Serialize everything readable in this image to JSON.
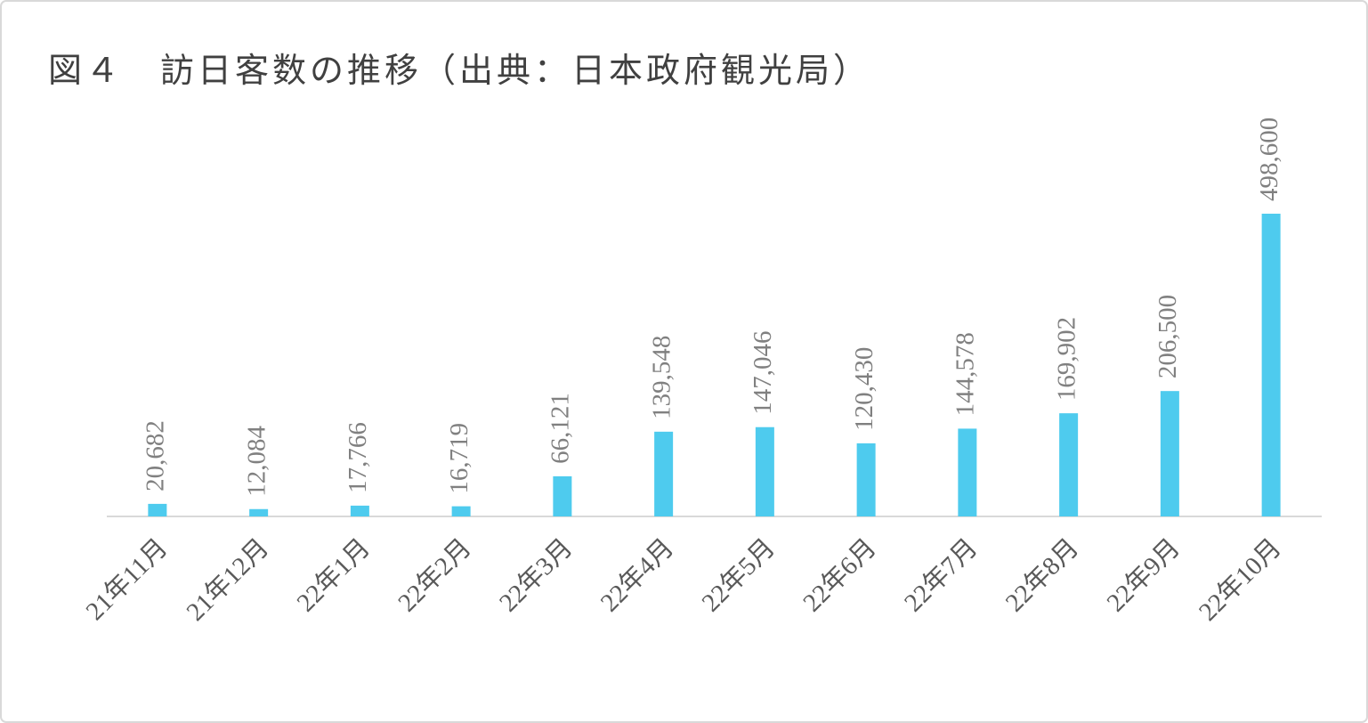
{
  "chart_data": {
    "type": "bar",
    "title": "図４　訪日客数の推移（出典：日本政府観光局）",
    "categories": [
      "21年11月",
      "21年12月",
      "22年1月",
      "22年2月",
      "22年3月",
      "22年4月",
      "22年5月",
      "22年6月",
      "22年7月",
      "22年8月",
      "22年9月",
      "22年10月"
    ],
    "values": [
      20682,
      12084,
      17766,
      16719,
      66121,
      139548,
      147046,
      120430,
      144578,
      169902,
      206500,
      498600
    ],
    "value_labels": [
      "20,682",
      "12,084",
      "17,766",
      "16,719",
      "66,121",
      "139,548",
      "147,046",
      "120,430",
      "144,578",
      "169,902",
      "206,500",
      "498,600"
    ],
    "color": "#4ecbee"
  }
}
